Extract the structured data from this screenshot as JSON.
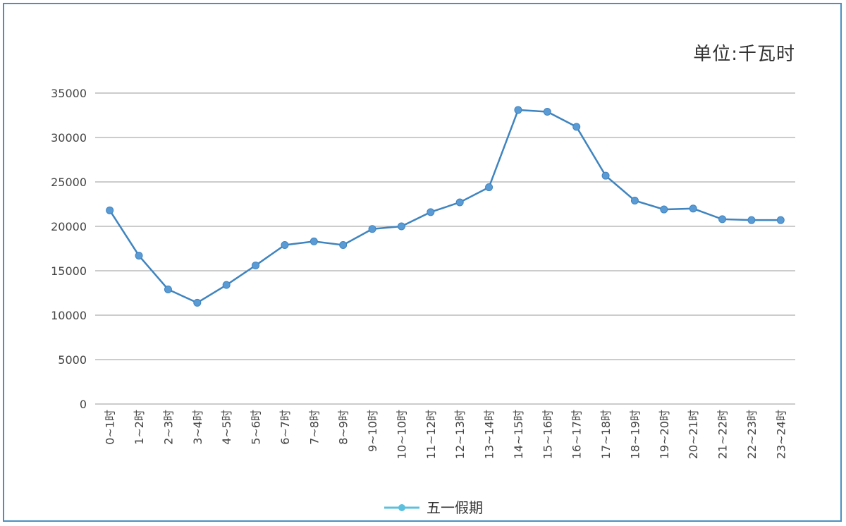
{
  "unit_label": "单位:千瓦时",
  "colors": {
    "line": "#3f84bf",
    "marker": "#5b9bd5",
    "grid": "#9a9a9a",
    "frame": "#4a8fc0",
    "legend_marker": "#5bc0de"
  },
  "chart_data": {
    "type": "line",
    "title": "",
    "xlabel": "",
    "ylabel": "",
    "ylim": [
      0,
      35000
    ],
    "yticks": [
      0,
      5000,
      10000,
      15000,
      20000,
      25000,
      30000,
      35000
    ],
    "grid": true,
    "legend_placement": "bottom",
    "categories": [
      "0~1时",
      "1~2时",
      "2~3时",
      "3~4时",
      "4~5时",
      "5~6时",
      "6~7时",
      "7~8时",
      "8~9时",
      "9~10时",
      "10~10时",
      "11~12时",
      "12~13时",
      "13~14时",
      "14~15时",
      "15~16时",
      "16~17时",
      "17~18时",
      "18~19时",
      "19~20时",
      "20~21时",
      "21~22时",
      "22~23时",
      "23~24时"
    ],
    "series": [
      {
        "name": "五一假期",
        "values": [
          21800,
          16700,
          12900,
          11400,
          13400,
          15600,
          17900,
          18300,
          17900,
          19700,
          20000,
          21600,
          22700,
          24400,
          33100,
          32900,
          31200,
          25700,
          22900,
          21900,
          22000,
          20800,
          20700,
          20700
        ]
      }
    ]
  }
}
